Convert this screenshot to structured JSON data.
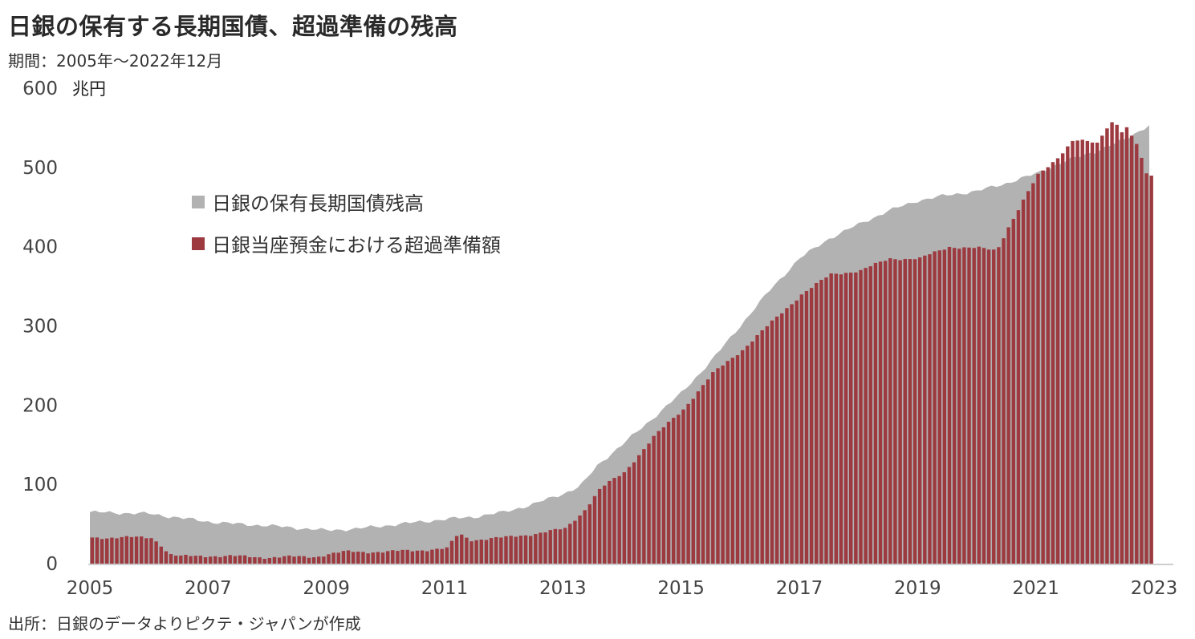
{
  "title": "日銀の保有する長期国債、超過準備の残高",
  "period": "期間：2005年～2022年12月",
  "source": "出所：日銀のデータよりピクテ・ジャパンが作成",
  "chart_data": {
    "type": "bar+area",
    "unit": "兆円",
    "ylim": [
      0,
      600
    ],
    "yticks": [
      0,
      100,
      200,
      300,
      400,
      500,
      600
    ],
    "xlim": [
      2005,
      2023
    ],
    "xticks": [
      "2005",
      "2007",
      "2009",
      "2011",
      "2013",
      "2015",
      "2017",
      "2019",
      "2021",
      "2023"
    ],
    "legend_position": "upper-left (inside plot)",
    "colors": {
      "jgb_area": "#b2b2b2",
      "excess_bar": "#9c3a40"
    },
    "series": [
      {
        "name": "日銀の保有長期国債残高",
        "type": "area",
        "points": [
          [
            2005.0,
            65
          ],
          [
            2006.0,
            63
          ],
          [
            2006.5,
            58
          ],
          [
            2007.0,
            53
          ],
          [
            2007.5,
            50
          ],
          [
            2008.0,
            48
          ],
          [
            2008.5,
            45
          ],
          [
            2009.0,
            42
          ],
          [
            2009.5,
            44
          ],
          [
            2010.0,
            48
          ],
          [
            2010.5,
            52
          ],
          [
            2011.0,
            56
          ],
          [
            2011.5,
            59
          ],
          [
            2012.0,
            65
          ],
          [
            2012.5,
            75
          ],
          [
            2013.0,
            88
          ],
          [
            2013.3,
            98
          ],
          [
            2013.6,
            125
          ],
          [
            2014.0,
            150
          ],
          [
            2014.5,
            182
          ],
          [
            2015.0,
            215
          ],
          [
            2015.5,
            255
          ],
          [
            2016.0,
            300
          ],
          [
            2016.5,
            345
          ],
          [
            2017.0,
            385
          ],
          [
            2017.5,
            410
          ],
          [
            2018.0,
            428
          ],
          [
            2018.5,
            445
          ],
          [
            2019.0,
            458
          ],
          [
            2019.5,
            465
          ],
          [
            2020.0,
            470
          ],
          [
            2020.5,
            480
          ],
          [
            2021.0,
            492
          ],
          [
            2021.5,
            508
          ],
          [
            2022.0,
            520
          ],
          [
            2022.5,
            535
          ],
          [
            2022.95,
            555
          ]
        ]
      },
      {
        "name": "日銀当座預金における超過準備額",
        "type": "bar",
        "frequency": "monthly",
        "points": [
          [
            2005.0,
            33
          ],
          [
            2006.0,
            33
          ],
          [
            2006.15,
            25
          ],
          [
            2006.3,
            12
          ],
          [
            2006.5,
            9
          ],
          [
            2007.0,
            10
          ],
          [
            2008.0,
            8
          ],
          [
            2008.8,
            9
          ],
          [
            2009.0,
            12
          ],
          [
            2009.3,
            15
          ],
          [
            2010.0,
            15
          ],
          [
            2010.5,
            17
          ],
          [
            2011.0,
            19
          ],
          [
            2011.2,
            38
          ],
          [
            2011.4,
            30
          ],
          [
            2012.0,
            33
          ],
          [
            2012.5,
            38
          ],
          [
            2013.0,
            44
          ],
          [
            2013.3,
            65
          ],
          [
            2013.6,
            95
          ],
          [
            2014.0,
            115
          ],
          [
            2014.5,
            160
          ],
          [
            2015.0,
            195
          ],
          [
            2015.5,
            240
          ],
          [
            2016.0,
            270
          ],
          [
            2016.5,
            305
          ],
          [
            2017.0,
            340
          ],
          [
            2017.5,
            365
          ],
          [
            2018.0,
            370
          ],
          [
            2018.5,
            385
          ],
          [
            2019.0,
            385
          ],
          [
            2019.5,
            400
          ],
          [
            2020.0,
            398
          ],
          [
            2020.3,
            395
          ],
          [
            2020.5,
            425
          ],
          [
            2020.8,
            465
          ],
          [
            2021.0,
            490
          ],
          [
            2021.3,
            510
          ],
          [
            2021.6,
            535
          ],
          [
            2022.0,
            530
          ],
          [
            2022.2,
            555
          ],
          [
            2022.3,
            560
          ],
          [
            2022.4,
            545
          ],
          [
            2022.5,
            550
          ],
          [
            2022.7,
            525
          ],
          [
            2022.8,
            495
          ],
          [
            2022.9,
            485
          ],
          [
            2022.95,
            500
          ]
        ]
      }
    ]
  }
}
